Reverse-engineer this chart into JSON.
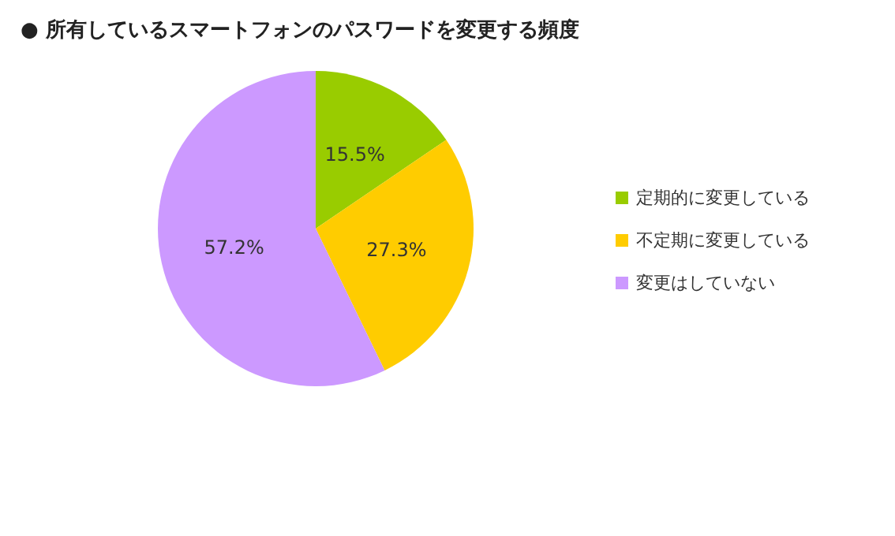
{
  "chart_data": {
    "type": "pie",
    "title": "● 所有しているスマートフォンのパスワードを変更する頻度",
    "categories": [
      "定期的に変更している",
      "不定期に変更している",
      "変更はしていない"
    ],
    "values": [
      15.5,
      27.3,
      57.2
    ],
    "colors": [
      "#99cc00",
      "#ffcc00",
      "#cc99ff"
    ],
    "value_labels": [
      "15.5%",
      "27.3%",
      "57.2%"
    ],
    "legend": "right"
  }
}
